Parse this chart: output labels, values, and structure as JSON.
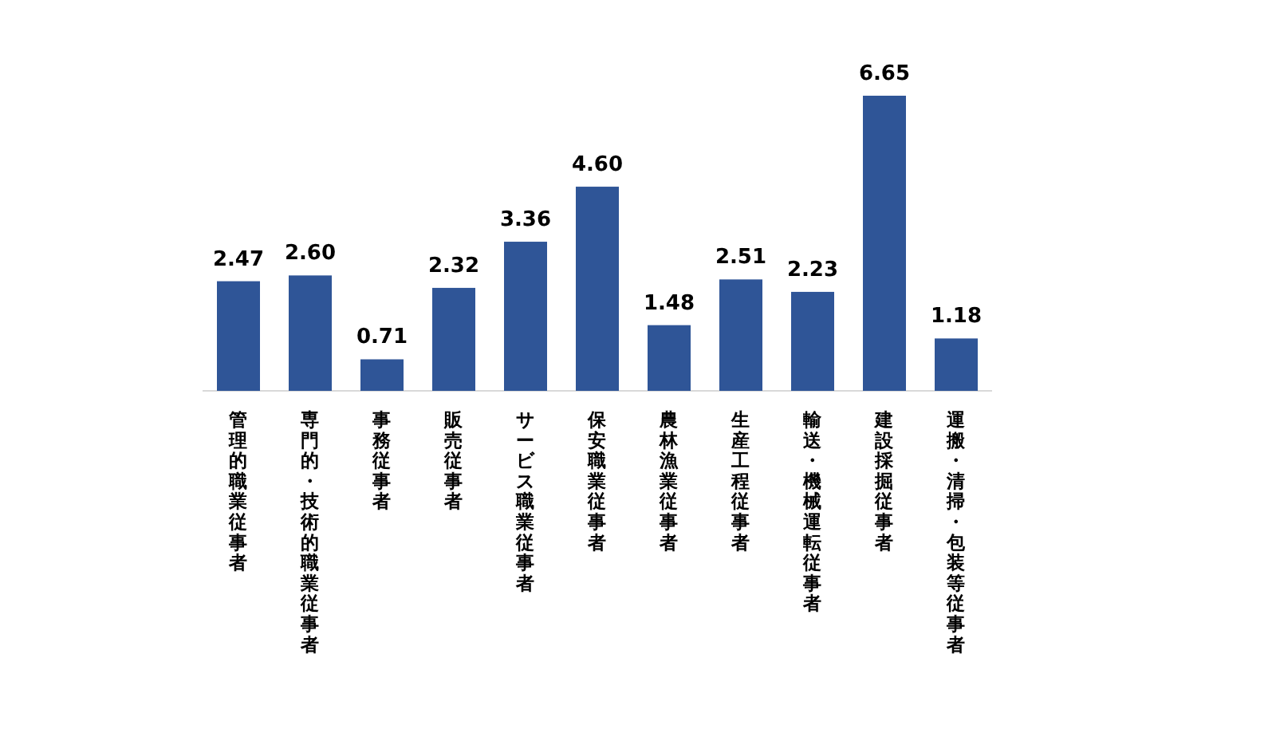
{
  "chart_data": {
    "type": "bar",
    "categories": [
      "管理的職業従事者",
      "専門的・技術的職業従事者",
      "事務従事者",
      "販売従事者",
      "サービス職業従事者",
      "保安職業従事者",
      "農林漁業従事者",
      "生産工程従事者",
      "輸送・機械運転従事者",
      "建設採掘従事者",
      "運搬・清掃・包装等従事者"
    ],
    "values": [
      2.47,
      2.6,
      0.71,
      2.32,
      3.36,
      4.6,
      1.48,
      2.51,
      2.23,
      6.65,
      1.18
    ],
    "color": "#2f5597",
    "value_labels": [
      "2.47",
      "2.60",
      "0.71",
      "2.32",
      "3.36",
      "4.60",
      "1.48",
      "2.51",
      "2.23",
      "6.65",
      "1.18"
    ]
  }
}
